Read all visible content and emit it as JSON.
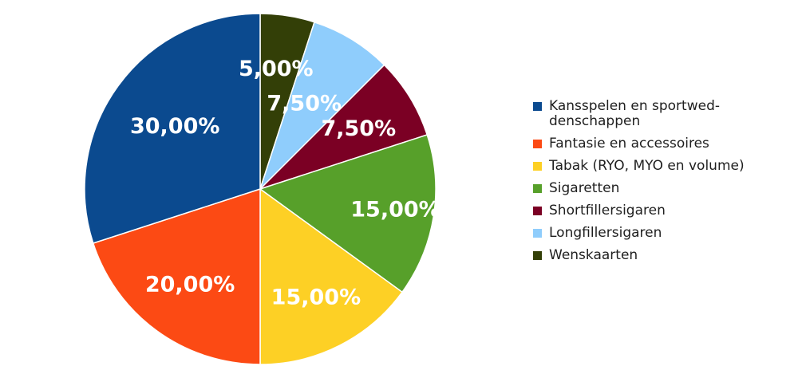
{
  "chart_data": {
    "type": "pie",
    "series": [
      {
        "name": "Kansspelen en sportwed-\ndenschappen",
        "value": 30,
        "label": "30,00%",
        "color": "#0b4a8f"
      },
      {
        "name": "Fantasie en accessoires",
        "value": 20,
        "label": "20,00%",
        "color": "#fc4a14"
      },
      {
        "name": "Tabak (RYO, MYO en volume)",
        "value": 15,
        "label": "15,00%",
        "color": "#fdd025"
      },
      {
        "name": "Sigaretten",
        "value": 15,
        "label": "15,00%",
        "color": "#57a02a"
      },
      {
        "name": "Shortfillersigaren",
        "value": 7.5,
        "label": "7,50%",
        "color": "#7b0024"
      },
      {
        "name": "Longfillersigaren",
        "value": 7.5,
        "label": "7,50%",
        "color": "#8fcdfc"
      },
      {
        "name": "Wenskaarten",
        "value": 5,
        "label": "5,00%",
        "color": "#333f07"
      }
    ],
    "legend_position": "right"
  }
}
